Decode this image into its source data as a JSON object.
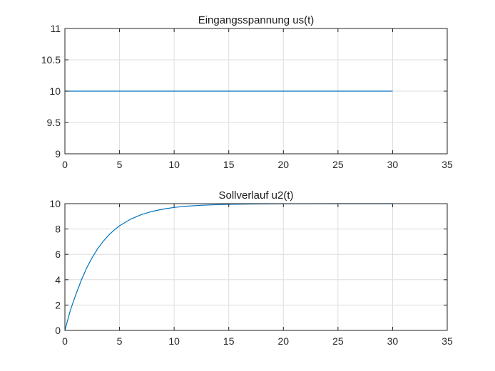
{
  "chart_data": [
    {
      "type": "line",
      "title": "Eingangsspannung us(t)",
      "xlabel": "",
      "ylabel": "",
      "xlim": [
        0,
        35
      ],
      "ylim": [
        9,
        11
      ],
      "xticks": [
        "0",
        "5",
        "10",
        "15",
        "20",
        "25",
        "30",
        "35"
      ],
      "yticks": [
        "9",
        "9.5",
        "10",
        "10.5",
        "11"
      ],
      "grid": true,
      "series": [
        {
          "color": "#0072bd",
          "x": [
            0,
            30
          ],
          "y": [
            10,
            10
          ]
        }
      ]
    },
    {
      "type": "line",
      "title": "Sollverlauf u2(t)",
      "xlabel": "",
      "ylabel": "",
      "xlim": [
        0,
        35
      ],
      "ylim": [
        0,
        10
      ],
      "xticks": [
        "0",
        "5",
        "10",
        "15",
        "20",
        "25",
        "30",
        "35"
      ],
      "yticks": [
        "0",
        "2",
        "4",
        "6",
        "8",
        "10"
      ],
      "grid": true,
      "series": [
        {
          "color": "#0072bd",
          "x": [
            0,
            0.5,
            1,
            1.5,
            2,
            2.5,
            3,
            3.5,
            4,
            4.5,
            5,
            6,
            7,
            8,
            9,
            10,
            11,
            12,
            13,
            14,
            15,
            17,
            20,
            25,
            30
          ],
          "y": [
            0,
            1.59,
            2.83,
            3.96,
            4.94,
            5.75,
            6.45,
            7.02,
            7.51,
            7.91,
            8.25,
            8.77,
            9.14,
            9.39,
            9.57,
            9.7,
            9.79,
            9.85,
            9.89,
            9.92,
            9.95,
            9.97,
            9.99,
            10.0,
            10.0
          ]
        }
      ]
    }
  ]
}
